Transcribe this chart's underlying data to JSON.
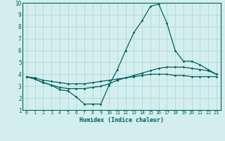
{
  "x": [
    0,
    1,
    2,
    3,
    4,
    5,
    6,
    7,
    8,
    9,
    10,
    11,
    12,
    13,
    14,
    15,
    16,
    17,
    18,
    19,
    20,
    21,
    22,
    23
  ],
  "line1": [
    3.8,
    3.6,
    3.3,
    3.1,
    2.7,
    2.6,
    2.1,
    1.5,
    1.5,
    1.5,
    3.1,
    4.4,
    6.0,
    7.5,
    8.5,
    9.7,
    9.9,
    8.3,
    6.0,
    5.1,
    5.1,
    4.8,
    4.4,
    4.0
  ],
  "line2": [
    3.8,
    3.6,
    3.3,
    3.1,
    2.9,
    2.8,
    2.8,
    2.8,
    2.9,
    3.0,
    3.2,
    3.5,
    3.7,
    3.9,
    4.1,
    4.3,
    4.5,
    4.6,
    4.6,
    4.6,
    4.5,
    4.4,
    4.3,
    4.0
  ],
  "line3": [
    3.8,
    3.7,
    3.5,
    3.4,
    3.3,
    3.2,
    3.2,
    3.2,
    3.3,
    3.4,
    3.5,
    3.6,
    3.7,
    3.8,
    3.9,
    4.0,
    4.0,
    4.0,
    3.9,
    3.9,
    3.8,
    3.8,
    3.8,
    3.8
  ],
  "line_color": "#006060",
  "bg_color": "#d4eeee",
  "grid_color": "#b0d8d8",
  "xlabel": "Humidex (Indice chaleur)",
  "ylim": [
    1,
    10
  ],
  "xlim": [
    -0.5,
    23.5
  ]
}
